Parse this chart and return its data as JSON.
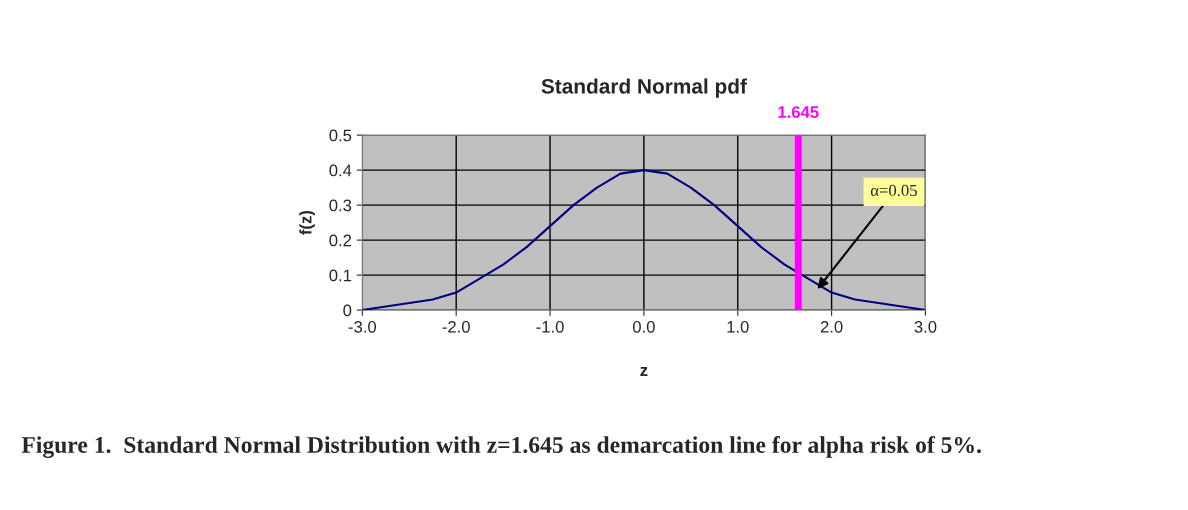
{
  "chart_data": {
    "type": "line",
    "title": "Standard Normal pdf",
    "xlabel": "z",
    "ylabel": "f(z)",
    "x": [
      -3,
      -2.75,
      -2.5,
      -2.25,
      -2,
      -1.75,
      -1.5,
      -1.25,
      -1,
      -0.75,
      -0.5,
      -0.25,
      0,
      0.25,
      0.5,
      0.75,
      1,
      1.25,
      1.5,
      1.75,
      2,
      2.25,
      2.5,
      2.75,
      3
    ],
    "series": [
      {
        "color": "#000080",
        "values": [
          0.0,
          0.01,
          0.02,
          0.03,
          0.05,
          0.09,
          0.13,
          0.18,
          0.24,
          0.3,
          0.35,
          0.39,
          0.4,
          0.39,
          0.35,
          0.3,
          0.24,
          0.18,
          0.13,
          0.09,
          0.05,
          0.03,
          0.02,
          0.01,
          0.0
        ]
      }
    ],
    "xlim": [
      -3,
      3
    ],
    "ylim": [
      0,
      0.5
    ],
    "xticks": [
      {
        "value": -3,
        "label": "-3.0"
      },
      {
        "value": -2,
        "label": "-2.0"
      },
      {
        "value": -1,
        "label": "-1.0"
      },
      {
        "value": 0,
        "label": "0.0"
      },
      {
        "value": 1,
        "label": "1.0"
      },
      {
        "value": 2,
        "label": "2.0"
      },
      {
        "value": 3,
        "label": "3.0"
      }
    ],
    "yticks": [
      0,
      0.1,
      0.2,
      0.3,
      0.4,
      0.5
    ],
    "grid": true,
    "marker": "none",
    "line_style": "solid",
    "ref_lines": [
      {
        "axis": "x",
        "value": 1.645,
        "label": "1.645",
        "color": "#ff00ff"
      }
    ],
    "annotations": [
      {
        "text": "α=0.05",
        "x": 1.85,
        "y": 0.06
      },
      "Figure 1.  Standard Normal Distribution with z=1.645 as demarcation line for alpha risk of 5%."
    ]
  }
}
